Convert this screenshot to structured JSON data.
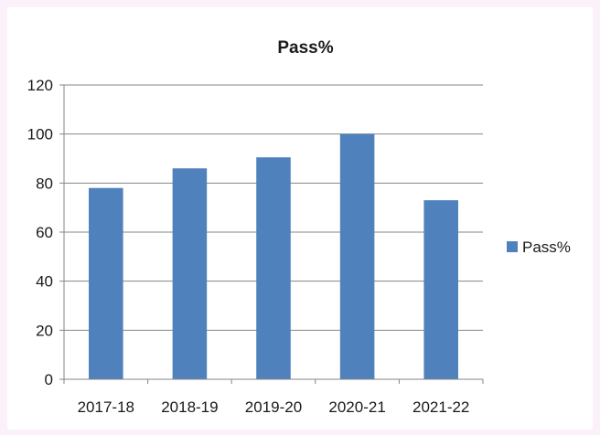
{
  "chart_data": {
    "type": "bar",
    "title": "Pass%",
    "xlabel": "",
    "ylabel": "",
    "categories": [
      "2017-18",
      "2018-19",
      "2019-20",
      "2020-21",
      "2021-22"
    ],
    "series": [
      {
        "name": "Pass%",
        "color": "#4f81bd",
        "values": [
          78,
          86,
          90.5,
          100,
          73
        ]
      }
    ],
    "ylim": [
      0,
      120
    ],
    "yticks": [
      "0",
      "20",
      "40",
      "60",
      "80",
      "100",
      "120"
    ],
    "grid": true,
    "legend": "right"
  }
}
